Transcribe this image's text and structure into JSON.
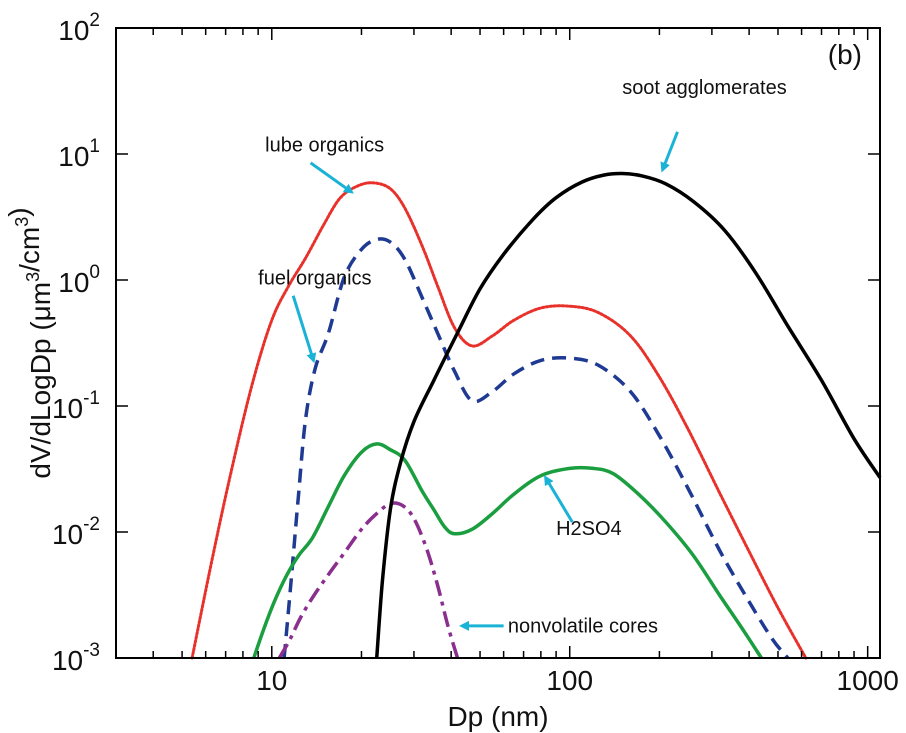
{
  "chart_data": {
    "type": "line",
    "panel_label": "(b)",
    "xlabel": "Dp (nm)",
    "ylabel": "dV/dLogDp (μm³/cm³)",
    "x_scale": "log",
    "y_scale": "log",
    "xlim": [
      3,
      1100
    ],
    "ylim": [
      0.001,
      100
    ],
    "grid": false,
    "legend": "none",
    "x_ticks": [
      {
        "value": 10,
        "label": "10"
      },
      {
        "value": 100,
        "label": "100"
      },
      {
        "value": 1000,
        "label": "1000"
      }
    ],
    "y_ticks": [
      {
        "value": 0.001,
        "mantissa": "10",
        "exponent": "-3"
      },
      {
        "value": 0.01,
        "mantissa": "10",
        "exponent": "-2"
      },
      {
        "value": 0.1,
        "mantissa": "10",
        "exponent": "-1"
      },
      {
        "value": 1,
        "mantissa": "10",
        "exponent": "0"
      },
      {
        "value": 10,
        "mantissa": "10",
        "exponent": "1"
      },
      {
        "value": 100,
        "mantissa": "10",
        "exponent": "2"
      }
    ],
    "series": [
      {
        "name": "lube organics",
        "color": "#e8312a",
        "style": "dotted",
        "x": [
          5.4,
          6.3,
          7.3,
          8.6,
          10,
          11.4,
          13,
          15,
          17,
          19.5,
          22,
          25,
          28,
          32,
          36,
          41,
          47,
          55,
          65,
          80,
          100,
          125,
          160,
          200,
          250,
          320,
          400,
          500,
          620
        ],
        "y": [
          0.001,
          0.006,
          0.03,
          0.15,
          0.48,
          0.9,
          1.5,
          2.8,
          4.5,
          5.6,
          5.9,
          5.3,
          3.7,
          1.85,
          0.9,
          0.42,
          0.3,
          0.36,
          0.48,
          0.6,
          0.62,
          0.55,
          0.36,
          0.17,
          0.065,
          0.02,
          0.007,
          0.0025,
          0.001
        ]
      },
      {
        "name": "fuel organics",
        "color": "#1f3a93",
        "style": "dashed",
        "x": [
          11,
          11.6,
          12.3,
          13,
          14,
          15.5,
          17.5,
          20,
          22.5,
          25,
          28,
          32,
          36,
          41,
          47,
          55,
          65,
          80,
          100,
          125,
          160,
          200,
          250,
          320,
          400,
          480,
          540
        ],
        "y": [
          0.001,
          0.004,
          0.02,
          0.08,
          0.2,
          0.38,
          1.05,
          1.75,
          2.1,
          2.0,
          1.45,
          0.72,
          0.38,
          0.19,
          0.11,
          0.13,
          0.18,
          0.23,
          0.24,
          0.21,
          0.13,
          0.058,
          0.022,
          0.007,
          0.0028,
          0.0014,
          0.001
        ]
      },
      {
        "name": "H2SO4",
        "color": "#1a9e3f",
        "style": "solid",
        "x": [
          8.7,
          9.4,
          10.2,
          11.2,
          12.3,
          13.7,
          15.5,
          17.5,
          20,
          22.5,
          25,
          28,
          32,
          35,
          38,
          41,
          47,
          55,
          65,
          80,
          100,
          120,
          140,
          170,
          210,
          260,
          320,
          380,
          440
        ],
        "y": [
          0.001,
          0.0017,
          0.0028,
          0.0045,
          0.0065,
          0.009,
          0.016,
          0.028,
          0.043,
          0.05,
          0.045,
          0.037,
          0.021,
          0.015,
          0.011,
          0.0097,
          0.0105,
          0.014,
          0.02,
          0.028,
          0.032,
          0.032,
          0.029,
          0.02,
          0.012,
          0.0065,
          0.0031,
          0.0017,
          0.001
        ]
      },
      {
        "name": "nonvolatile cores",
        "color": "#8b2f8f",
        "style": "dashdot",
        "x": [
          10.6,
          11.5,
          12.5,
          13.8,
          15.5,
          17.5,
          20,
          22.5,
          25,
          27.5,
          30,
          33,
          36,
          39,
          42
        ],
        "y": [
          0.001,
          0.0014,
          0.0021,
          0.0031,
          0.0046,
          0.0068,
          0.0105,
          0.014,
          0.0168,
          0.0162,
          0.0128,
          0.0075,
          0.0038,
          0.0018,
          0.001
        ]
      },
      {
        "name": "soot agglomerates",
        "color": "#000000",
        "style": "solid",
        "x": [
          22.5,
          23.5,
          25,
          27,
          30,
          35,
          42,
          50,
          60,
          75,
          90,
          110,
          130,
          150,
          175,
          210,
          260,
          330,
          420,
          540,
          700,
          900,
          1100
        ],
        "y": [
          0.001,
          0.004,
          0.015,
          0.035,
          0.075,
          0.16,
          0.38,
          0.85,
          1.6,
          3.0,
          4.5,
          6.0,
          6.8,
          7.0,
          6.7,
          5.8,
          4.2,
          2.5,
          1.15,
          0.43,
          0.16,
          0.055,
          0.027
        ]
      }
    ],
    "annotations": [
      {
        "text": "lube organics",
        "color": "#1ab3d6",
        "text_at": [
          9.5,
          10.5
        ],
        "arrow_from": [
          13.5,
          8.5
        ],
        "arrow_to": [
          18.5,
          5.0
        ]
      },
      {
        "text": "fuel organics",
        "color": "#1ab3d6",
        "text_at": [
          9.0,
          0.92
        ],
        "arrow_from": [
          11.8,
          0.75
        ],
        "arrow_to": [
          13.8,
          0.23
        ]
      },
      {
        "text": "soot agglomerates",
        "color": "#1ab3d6",
        "text_at": [
          150,
          30
        ],
        "arrow_from": [
          230,
          15
        ],
        "arrow_to": [
          205,
          7.5
        ]
      },
      {
        "text": "H2SO4",
        "color": "#1ab3d6",
        "text_at": [
          90,
          0.0095
        ],
        "arrow_from": [
          102,
          0.012
        ],
        "arrow_to": [
          83,
          0.027
        ]
      },
      {
        "text": "nonvolatile cores",
        "color": "#1ab3d6",
        "text_at": [
          62,
          0.0016
        ],
        "arrow_from": [
          60,
          0.0018
        ],
        "arrow_to": [
          43.5,
          0.0018
        ]
      }
    ]
  }
}
